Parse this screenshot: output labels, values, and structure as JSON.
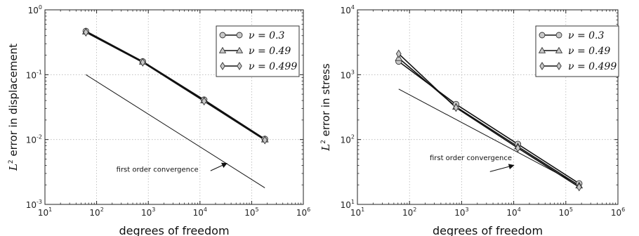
{
  "chart_data": [
    {
      "type": "line",
      "title": "",
      "xlabel": "degrees of freedom",
      "ylabel_prefix": "L",
      "ylabel_sup": "2",
      "ylabel_rest": " error in displacement",
      "xscale": "log",
      "yscale": "log",
      "xlim": [
        10,
        1000000
      ],
      "ylim": [
        0.001,
        1
      ],
      "grid": true,
      "legend_position": "top-right",
      "x_ticks": [
        {
          "base": "10",
          "exp": "1",
          "value": 10
        },
        {
          "base": "10",
          "exp": "2",
          "value": 100
        },
        {
          "base": "10",
          "exp": "3",
          "value": 1000
        },
        {
          "base": "10",
          "exp": "4",
          "value": 10000
        },
        {
          "base": "10",
          "exp": "5",
          "value": 100000
        },
        {
          "base": "10",
          "exp": "6",
          "value": 1000000
        }
      ],
      "y_ticks": [
        {
          "base": "10",
          "exp": "-3",
          "value": 0.001
        },
        {
          "base": "10",
          "exp": "-2",
          "value": 0.01
        },
        {
          "base": "10",
          "exp": "-1",
          "value": 0.1
        },
        {
          "base": "10",
          "exp": "0",
          "value": 1
        }
      ],
      "series": [
        {
          "name": "ν = 0.3",
          "marker": "circle",
          "x": [
            62,
            780,
            12000,
            180000
          ],
          "y": [
            0.47,
            0.16,
            0.041,
            0.0102
          ]
        },
        {
          "name": "ν = 0.49",
          "marker": "triangle",
          "x": [
            62,
            780,
            12000,
            180000
          ],
          "y": [
            0.46,
            0.158,
            0.04,
            0.01
          ]
        },
        {
          "name": "ν = 0.499",
          "marker": "diamond",
          "x": [
            62,
            780,
            12000,
            180000
          ],
          "y": [
            0.45,
            0.155,
            0.039,
            0.0098
          ]
        }
      ],
      "reference_line": {
        "x": [
          62,
          180000
        ],
        "y": [
          0.1,
          0.0018
        ]
      },
      "annotation": {
        "text": "first order convergence",
        "text_pos": [
          1500,
          0.0032
        ],
        "arrow_from": [
          16000,
          0.0033
        ],
        "arrow_to": [
          33000,
          0.0043
        ]
      }
    },
    {
      "type": "line",
      "title": "",
      "xlabel": "degrees of freedom",
      "ylabel_prefix": "L",
      "ylabel_sup": "2",
      "ylabel_rest": " error in stress",
      "xscale": "log",
      "yscale": "log",
      "xlim": [
        10,
        1000000
      ],
      "ylim": [
        10,
        10000
      ],
      "grid": true,
      "legend_position": "top-right",
      "x_ticks": [
        {
          "base": "10",
          "exp": "1",
          "value": 10
        },
        {
          "base": "10",
          "exp": "2",
          "value": 100
        },
        {
          "base": "10",
          "exp": "3",
          "value": 1000
        },
        {
          "base": "10",
          "exp": "4",
          "value": 10000
        },
        {
          "base": "10",
          "exp": "5",
          "value": 100000
        },
        {
          "base": "10",
          "exp": "6",
          "value": 1000000
        }
      ],
      "y_ticks": [
        {
          "base": "10",
          "exp": "1",
          "value": 10
        },
        {
          "base": "10",
          "exp": "2",
          "value": 100
        },
        {
          "base": "10",
          "exp": "3",
          "value": 1000
        },
        {
          "base": "10",
          "exp": "4",
          "value": 10000
        }
      ],
      "series": [
        {
          "name": "ν = 0.3",
          "marker": "circle",
          "x": [
            62,
            780,
            12000,
            180000
          ],
          "y": [
            1600,
            350,
            85,
            21
          ]
        },
        {
          "name": "ν = 0.49",
          "marker": "triangle",
          "x": [
            62,
            780,
            12000,
            180000
          ],
          "y": [
            1800,
            320,
            78,
            19.5
          ]
        },
        {
          "name": "ν = 0.499",
          "marker": "diamond",
          "x": [
            62,
            780,
            12000,
            180000
          ],
          "y": [
            2100,
            310,
            74,
            18.5
          ]
        }
      ],
      "reference_line": {
        "x": [
          62,
          180000
        ],
        "y": [
          600,
          20
        ]
      },
      "annotation": {
        "text": "first order convergence",
        "text_pos": [
          1500,
          48
        ],
        "arrow_from": [
          3500,
          32
        ],
        "arrow_to": [
          10000,
          40
        ]
      }
    }
  ]
}
